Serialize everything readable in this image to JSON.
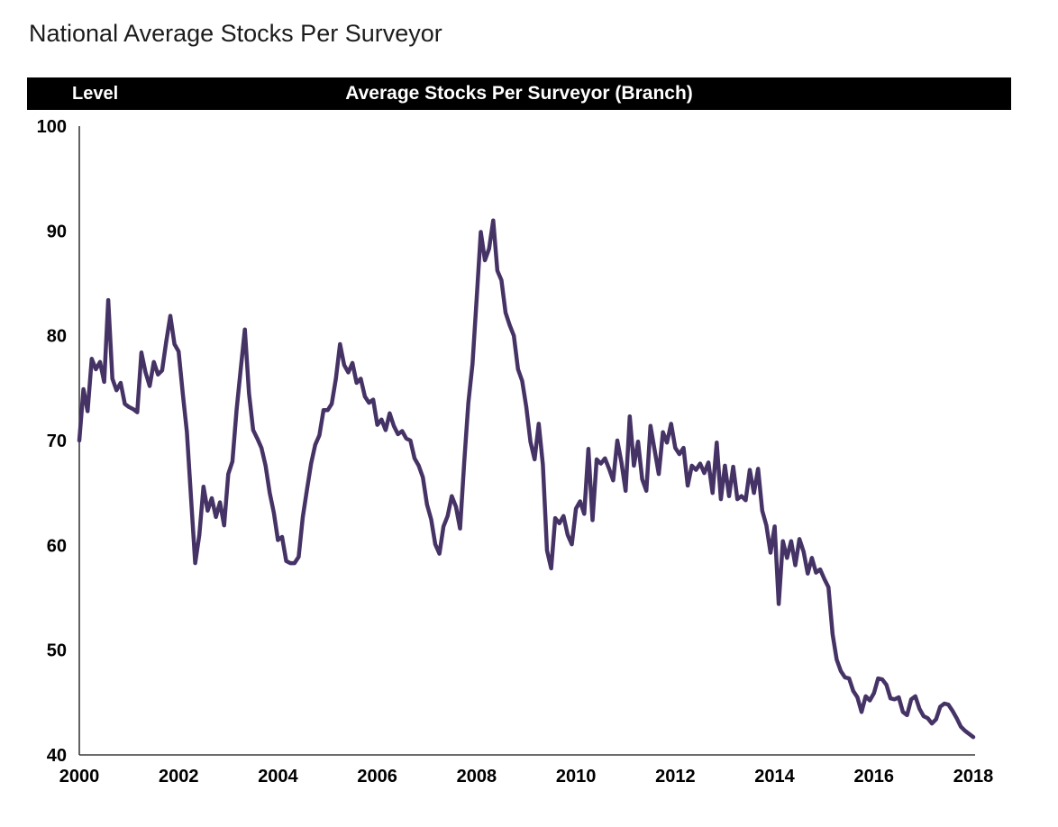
{
  "page": {
    "title": "National Average Stocks Per Surveyor"
  },
  "header_bar": {
    "left_label": "Level",
    "title": "Average Stocks Per Surveyor (Branch)",
    "bg_color": "#000000",
    "text_color": "#ffffff"
  },
  "chart_data": {
    "type": "line",
    "title": "Average Stocks Per Surveyor (Branch)",
    "ylabel": "Level",
    "frequency": "monthly",
    "x_start": "2000-01",
    "x_end": "2018-01",
    "xlim_years": [
      2000,
      2018
    ],
    "ylim": [
      40,
      100
    ],
    "y_ticks": [
      "100",
      "90",
      "80",
      "70",
      "60",
      "50",
      "40"
    ],
    "x_ticks": [
      "2000",
      "2002",
      "2004",
      "2006",
      "2008",
      "2010",
      "2012",
      "2014",
      "2016",
      "2018"
    ],
    "grid": false,
    "legend": "none",
    "line_color": "#463366",
    "axis_color": "#3c3c3c",
    "series": [
      {
        "name": "Average Stocks Per Surveyor (Branch)",
        "values": [
          70.0,
          74.9,
          72.8,
          77.8,
          76.8,
          77.5,
          75.6,
          83.4,
          75.9,
          74.8,
          75.5,
          73.5,
          73.2,
          73.0,
          72.7,
          78.4,
          76.5,
          75.2,
          77.5,
          76.3,
          76.7,
          79.4,
          81.9,
          79.2,
          78.5,
          74.5,
          70.8,
          64.5,
          58.3,
          61.0,
          65.6,
          63.3,
          64.5,
          62.7,
          64.1,
          61.9,
          66.8,
          68.0,
          72.9,
          76.8,
          80.6,
          74.5,
          71.0,
          70.2,
          69.3,
          67.6,
          65.0,
          63.1,
          60.5,
          60.8,
          58.5,
          58.3,
          58.3,
          58.9,
          62.7,
          65.3,
          67.8,
          69.6,
          70.5,
          72.9,
          72.9,
          73.5,
          75.9,
          79.2,
          77.2,
          76.5,
          77.4,
          75.5,
          75.9,
          74.2,
          73.6,
          73.9,
          71.5,
          72.0,
          71.0,
          72.6,
          71.4,
          70.6,
          70.9,
          70.2,
          70.0,
          68.3,
          67.6,
          66.5,
          63.9,
          62.5,
          60.1,
          59.2,
          61.8,
          62.8,
          64.7,
          63.7,
          61.6,
          67.9,
          73.6,
          77.3,
          83.5,
          89.9,
          87.2,
          88.3,
          91.0,
          86.2,
          85.3,
          82.2,
          81.0,
          80.0,
          76.8,
          75.7,
          73.2,
          69.9,
          68.2,
          71.6,
          67.7,
          59.5,
          57.8,
          62.6,
          62.1,
          62.8,
          61.0,
          60.1,
          63.5,
          64.2,
          63.0,
          69.2,
          62.4,
          68.2,
          67.8,
          68.3,
          67.3,
          66.2,
          70.0,
          67.9,
          65.2,
          72.3,
          67.6,
          69.9,
          66.3,
          65.2,
          71.4,
          69.1,
          66.8,
          70.8,
          69.8,
          71.6,
          69.3,
          68.7,
          69.3,
          65.7,
          67.6,
          67.2,
          67.8,
          66.9,
          67.9,
          65.0,
          69.8,
          64.4,
          67.6,
          64.7,
          67.5,
          64.4,
          64.7,
          64.3,
          67.2,
          65.0,
          67.3,
          63.3,
          61.9,
          59.3,
          61.8,
          54.4,
          60.4,
          58.8,
          60.4,
          58.1,
          60.6,
          59.4,
          57.3,
          58.8,
          57.4,
          57.7,
          56.8,
          56.0,
          51.5,
          49.1,
          48.0,
          47.4,
          47.3,
          46.1,
          45.5,
          44.1,
          45.6,
          45.2,
          45.9,
          47.3,
          47.2,
          46.7,
          45.4,
          45.3,
          45.5,
          44.1,
          43.8,
          45.3,
          45.6,
          44.4,
          43.7,
          43.5,
          43.0,
          43.4,
          44.6,
          44.9,
          44.8,
          44.2,
          43.5,
          42.7,
          42.3,
          42.0,
          41.7
        ]
      }
    ]
  }
}
